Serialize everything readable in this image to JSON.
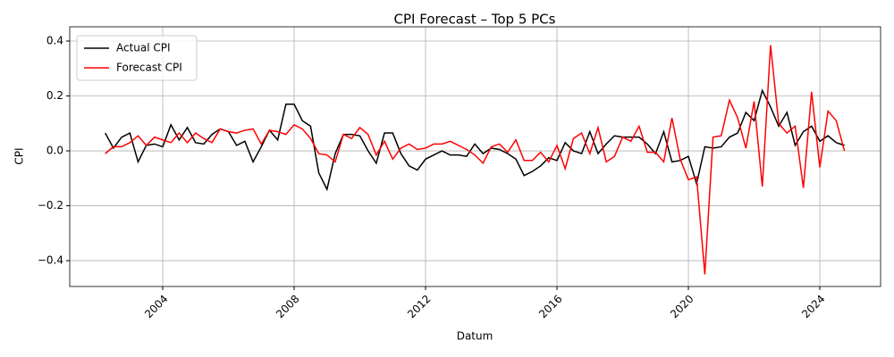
{
  "chart_data": {
    "type": "line",
    "title": "CPI Forecast – Top 5 PCs",
    "xlabel": "Datum",
    "ylabel": "CPI",
    "x": [
      2002.25,
      2002.5,
      2002.75,
      2003,
      2003.25,
      2003.5,
      2003.75,
      2004,
      2004.25,
      2004.5,
      2004.75,
      2005,
      2005.25,
      2005.5,
      2005.75,
      2006,
      2006.25,
      2006.5,
      2006.75,
      2007,
      2007.25,
      2007.5,
      2007.75,
      2008,
      2008.25,
      2008.5,
      2008.75,
      2009,
      2009.25,
      2009.5,
      2009.75,
      2010,
      2010.25,
      2010.5,
      2010.75,
      2011,
      2011.25,
      2011.5,
      2011.75,
      2012,
      2012.25,
      2012.5,
      2012.75,
      2013,
      2013.25,
      2013.5,
      2013.75,
      2014,
      2014.25,
      2014.5,
      2014.75,
      2015,
      2015.25,
      2015.5,
      2015.75,
      2016,
      2016.25,
      2016.5,
      2016.75,
      2017,
      2017.25,
      2017.5,
      2017.75,
      2018,
      2018.25,
      2018.5,
      2018.75,
      2019,
      2019.25,
      2019.5,
      2019.75,
      2020,
      2020.25,
      2020.5,
      2020.75,
      2021,
      2021.25,
      2021.5,
      2021.75,
      2022,
      2022.25,
      2022.5,
      2022.75,
      2023,
      2023.25,
      2023.5,
      2023.75,
      2024,
      2024.25,
      2024.5,
      2024.75
    ],
    "series": [
      {
        "name": "Actual CPI",
        "color": "#000000",
        "values": [
          0.065,
          0.01,
          0.05,
          0.065,
          -0.04,
          0.02,
          0.025,
          0.015,
          0.095,
          0.04,
          0.085,
          0.03,
          0.025,
          0.06,
          0.08,
          0.07,
          0.02,
          0.035,
          -0.04,
          0.015,
          0.075,
          0.04,
          0.17,
          0.17,
          0.11,
          0.09,
          -0.08,
          -0.14,
          -0.01,
          0.06,
          0.06,
          0.055,
          0.0,
          -0.045,
          0.065,
          0.065,
          -0.01,
          -0.055,
          -0.07,
          -0.03,
          -0.015,
          0.0,
          -0.015,
          -0.015,
          -0.02,
          0.025,
          -0.01,
          0.01,
          0.005,
          -0.01,
          -0.03,
          -0.09,
          -0.075,
          -0.055,
          -0.025,
          -0.035,
          0.03,
          0.0,
          -0.01,
          0.07,
          -0.01,
          0.025,
          0.055,
          0.05,
          0.05,
          0.05,
          0.025,
          -0.01,
          0.07,
          -0.04,
          -0.035,
          -0.02,
          -0.12,
          0.015,
          0.01,
          0.015,
          0.05,
          0.065,
          0.14,
          0.11,
          0.22,
          0.16,
          0.09,
          0.14,
          0.02,
          0.07,
          0.09,
          0.035,
          0.055,
          0.03,
          0.02
        ]
      },
      {
        "name": "Forecast CPI",
        "color": "#ff0000",
        "values": [
          -0.01,
          0.015,
          0.015,
          0.03,
          0.055,
          0.02,
          0.05,
          0.04,
          0.03,
          0.065,
          0.03,
          0.065,
          0.045,
          0.03,
          0.08,
          0.07,
          0.065,
          0.075,
          0.08,
          0.025,
          0.075,
          0.07,
          0.06,
          0.095,
          0.08,
          0.045,
          -0.01,
          -0.015,
          -0.04,
          0.06,
          0.045,
          0.085,
          0.06,
          -0.015,
          0.035,
          -0.03,
          0.01,
          0.025,
          0.005,
          0.01,
          0.025,
          0.025,
          0.035,
          0.02,
          0.005,
          -0.015,
          -0.045,
          0.015,
          0.025,
          -0.005,
          0.04,
          -0.035,
          -0.035,
          -0.005,
          -0.04,
          0.02,
          -0.065,
          0.045,
          0.065,
          -0.01,
          0.085,
          -0.04,
          -0.02,
          0.05,
          0.035,
          0.09,
          -0.005,
          -0.005,
          -0.04,
          0.12,
          -0.03,
          -0.105,
          -0.095,
          -0.45,
          0.05,
          0.055,
          0.185,
          0.12,
          0.01,
          0.18,
          -0.13,
          0.385,
          0.1,
          0.065,
          0.09,
          -0.135,
          0.215,
          -0.06,
          0.145,
          0.11,
          0.0
        ]
      }
    ],
    "xlim": [
      2001.17,
      2025.85
    ],
    "xticks": [
      2004,
      2008,
      2012,
      2016,
      2020,
      2024
    ],
    "ylim": [
      -0.494,
      0.452
    ],
    "yticks": [
      {
        "value": -0.4,
        "label": "−0.4"
      },
      {
        "value": -0.2,
        "label": "−0.2"
      },
      {
        "value": 0,
        "label": "0.0"
      },
      0.2,
      0.4
    ],
    "grid": true,
    "legend": "upper left"
  }
}
